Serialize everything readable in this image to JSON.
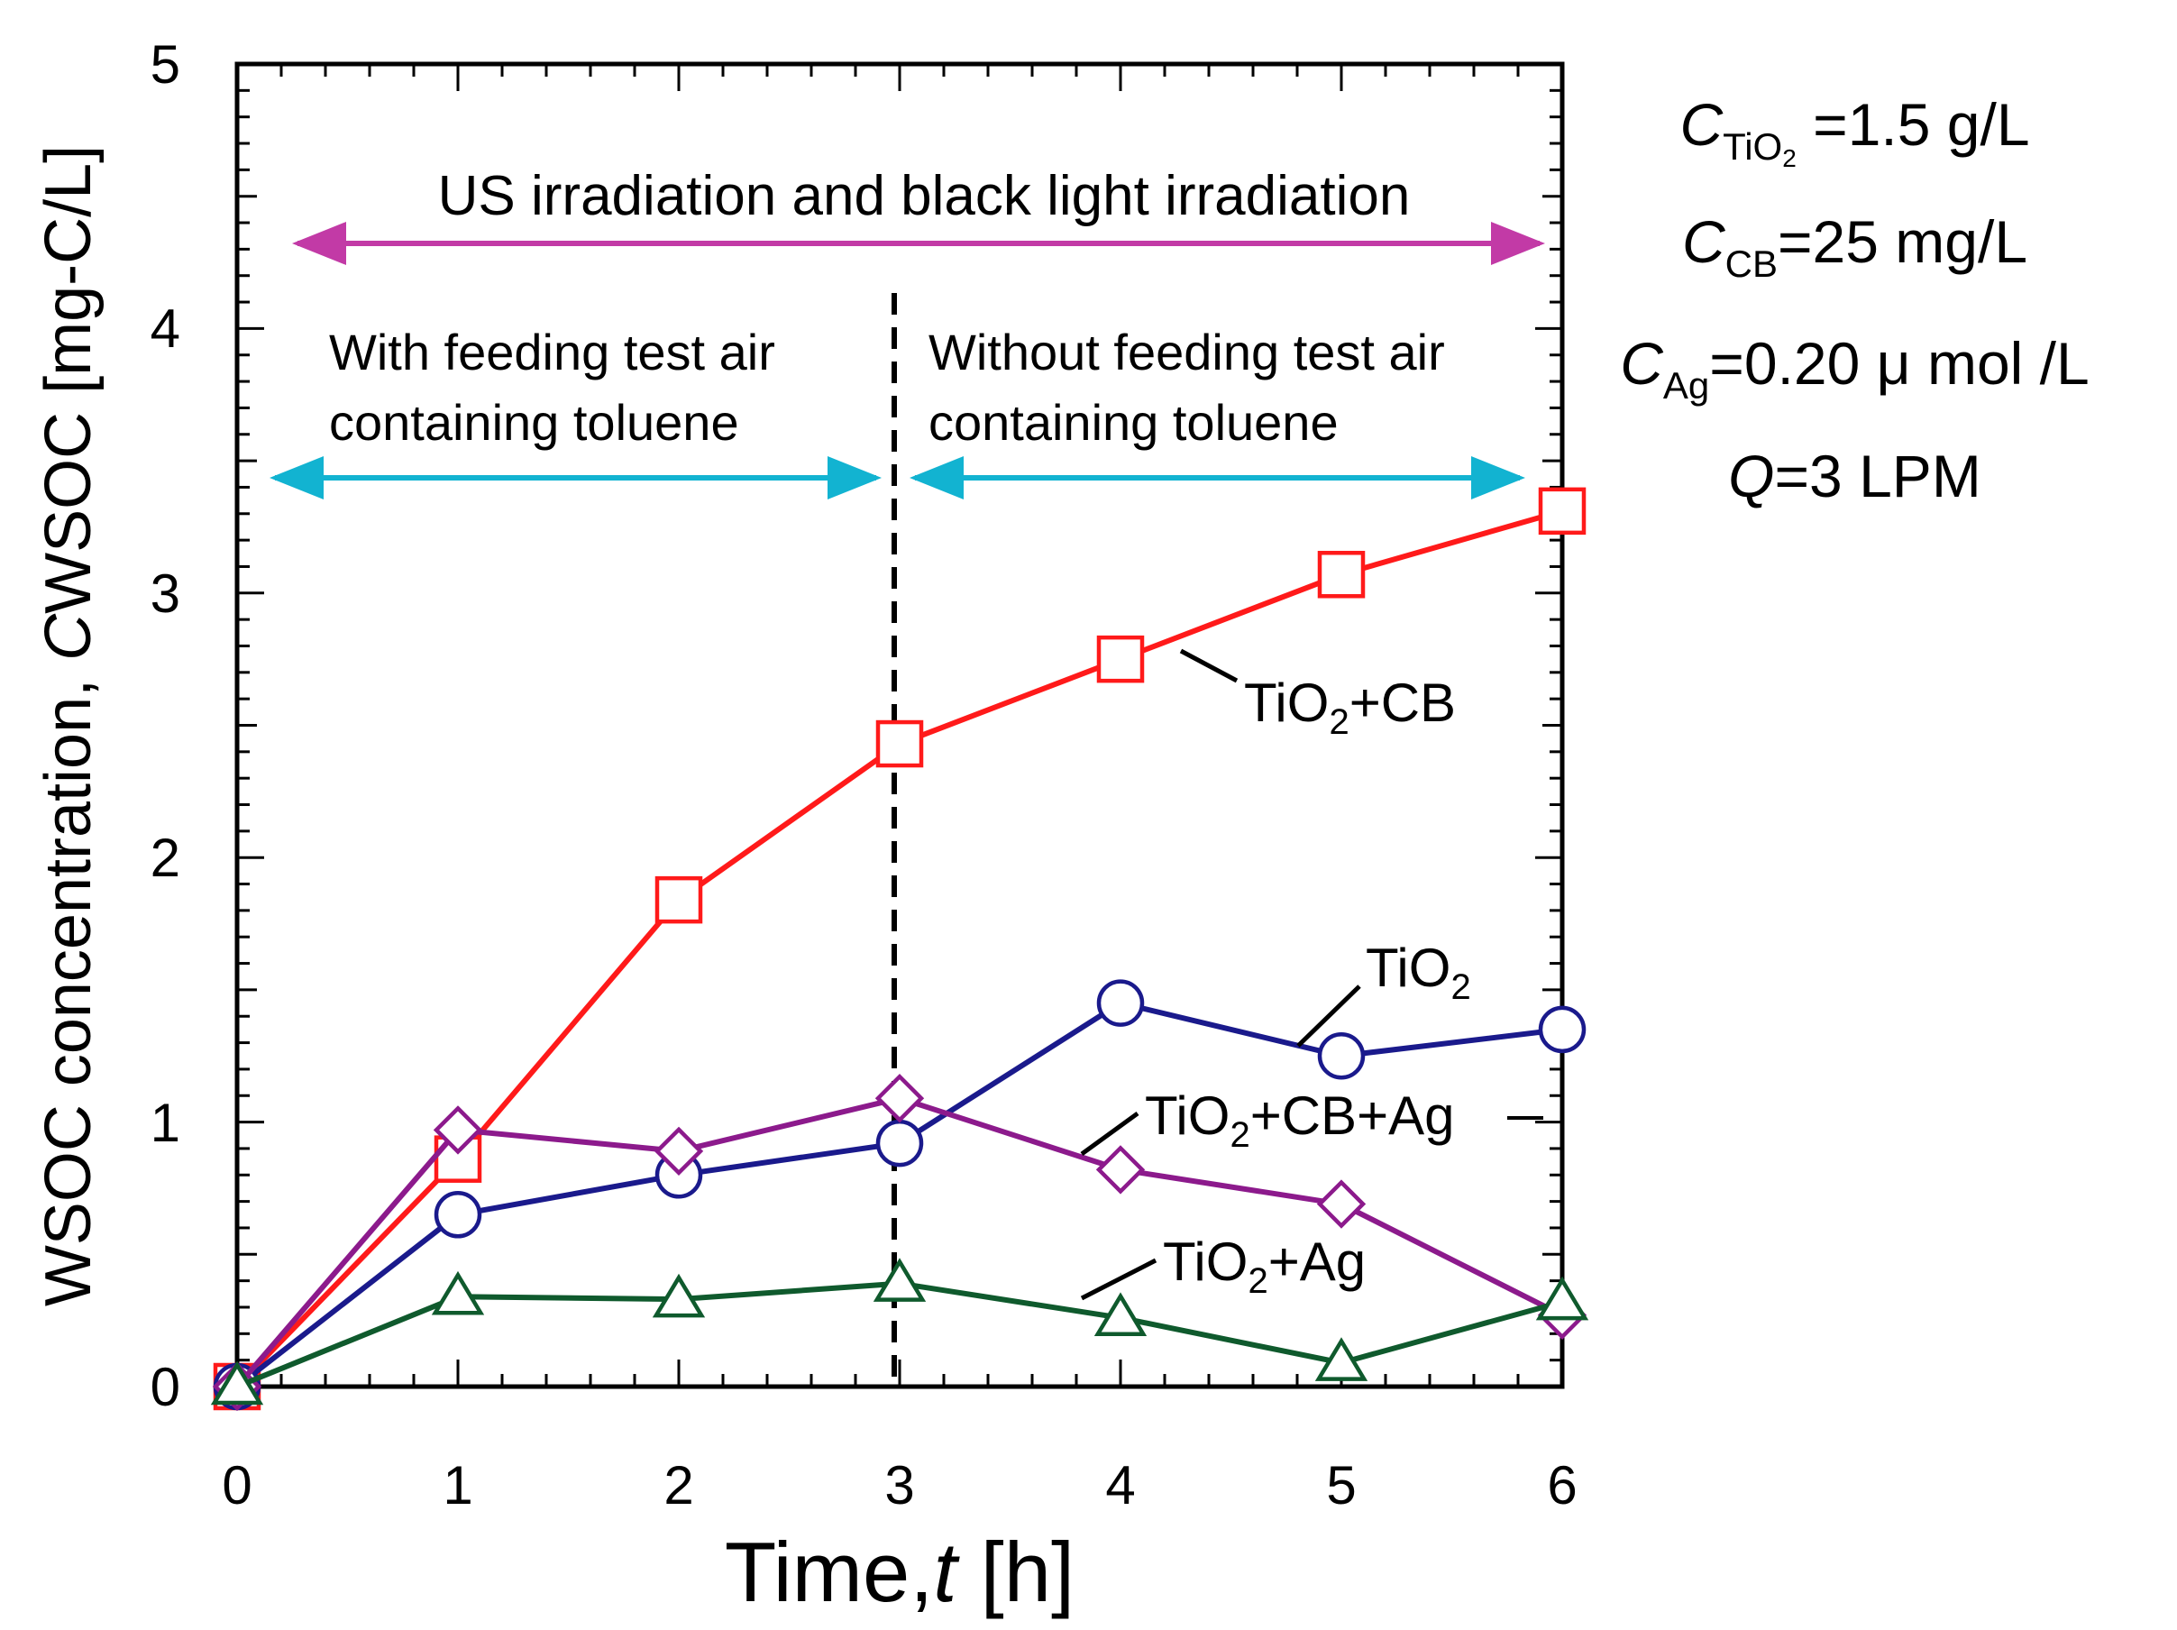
{
  "chart_data": {
    "type": "line",
    "title": "",
    "x": [
      0,
      1,
      2,
      3,
      4,
      5,
      6
    ],
    "xlim": [
      0,
      6
    ],
    "ylim": [
      0,
      5
    ],
    "xticks": [
      "0",
      "1",
      "2",
      "3",
      "4",
      "5",
      "6"
    ],
    "yticks": [
      "0",
      "1",
      "2",
      "3",
      "4",
      "5"
    ],
    "xlabel": {
      "prefix": "Time,",
      "var": "t",
      "unit": " [h]"
    },
    "ylabel": {
      "prefix": "WSOC concentration, ",
      "var": "C",
      "sub": "WSOC",
      "unit": " [mg-C/L]"
    },
    "grid": false,
    "series": [
      {
        "name": "TiO2+CB",
        "label_main": "TiO",
        "label_sub": "2",
        "label_tail": "+CB",
        "marker": "square",
        "color": "#ff1a1a",
        "values": [
          0.0,
          0.86,
          1.84,
          2.43,
          2.75,
          3.07,
          3.31
        ]
      },
      {
        "name": "TiO2",
        "label_main": "TiO",
        "label_sub": "2",
        "label_tail": "",
        "marker": "circle",
        "color": "#1a1a8c",
        "values": [
          0.0,
          0.65,
          0.8,
          0.92,
          1.45,
          1.25,
          1.35
        ]
      },
      {
        "name": "TiO2+CB+Ag",
        "label_main": "TiO",
        "label_sub": "2",
        "label_tail": "+CB+Ag",
        "marker": "diamond",
        "color": "#8c1a8c",
        "values": [
          0.0,
          0.97,
          0.89,
          1.09,
          0.82,
          0.69,
          0.27
        ]
      },
      {
        "name": "TiO2+Ag",
        "label_main": "TiO",
        "label_sub": "2",
        "label_tail": "+Ag",
        "marker": "triangle",
        "color": "#0f5a2d",
        "values": [
          0.0,
          0.34,
          0.33,
          0.39,
          0.26,
          0.09,
          0.32
        ]
      }
    ],
    "annotations": {
      "phase_divider_x": 3,
      "us_irradiation": "US irradiation and black light irradiation",
      "with_feeding": [
        "With feeding test air",
        "containing toluene"
      ],
      "without_feeding": [
        "Without feeding test air",
        "containing toluene"
      ],
      "arrow_colors": {
        "us": "#c23aa6",
        "feeding": "#12b3d1"
      }
    }
  },
  "conditions": [
    {
      "var": "C",
      "sub": "TiO",
      "sub2": "2",
      "value": " =1.5 g/L"
    },
    {
      "var": "C",
      "sub": "CB",
      "value": "=25 mg/L"
    },
    {
      "var": "C",
      "sub": "Ag",
      "value": "=0.20 μ mol /L"
    },
    {
      "var": "Q",
      "value": "=3 LPM"
    }
  ]
}
